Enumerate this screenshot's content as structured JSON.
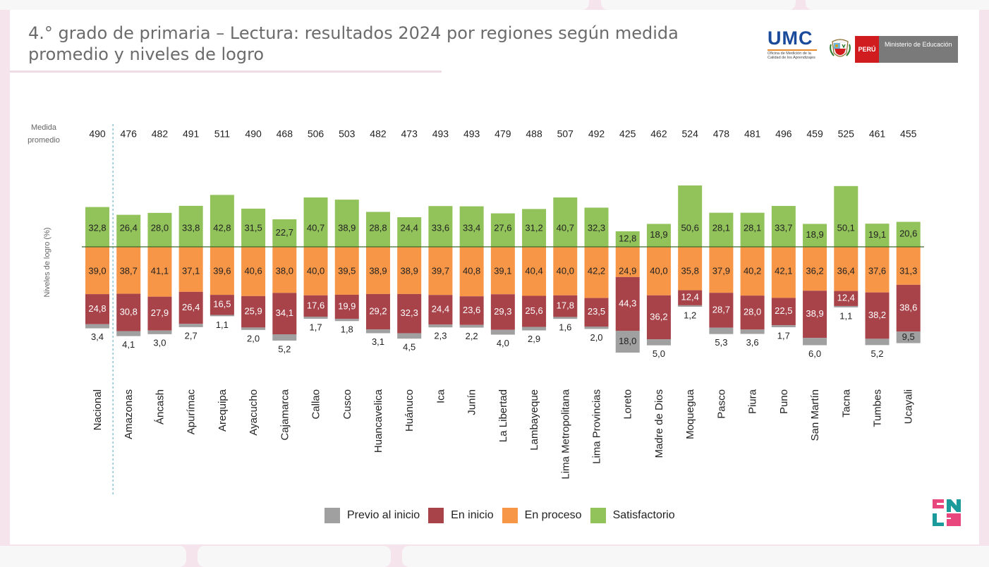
{
  "title": "4.° grado de primaria – Lectura: resultados 2024 por regiones según medida promedio y niveles de logro",
  "logos": {
    "umc_name": "UMC",
    "umc_subtitle": "Oficina de Medición de la Calidad de los Aprendizajes",
    "peru_label": "PERÚ",
    "ministry_label": "Ministerio de Educación",
    "enla_label": "ENLA"
  },
  "colors": {
    "previo": "#a0a0a0",
    "inicio": "#a8434a",
    "proceso": "#f79646",
    "satisfactorio": "#92c25a",
    "baseline": "#3d6b2a",
    "divider": "#4fa7c0"
  },
  "chart_data": {
    "type": "bar",
    "stacking": "diverging",
    "row_label": "Medida\npromedio",
    "ylabel": "Niveles de logro (%)",
    "categories": [
      "Nacional",
      "Amazonas",
      "Áncash",
      "Apurímac",
      "Arequipa",
      "Ayacucho",
      "Cajamarca",
      "Callao",
      "Cusco",
      "Huancavelica",
      "Huánuco",
      "Ica",
      "Junín",
      "La Libertad",
      "Lambayeque",
      "Lima Metropolitana",
      "Lima Provincias",
      "Loreto",
      "Madre de Dios",
      "Moquegua",
      "Pasco",
      "Piura",
      "Puno",
      "San Martín",
      "Tacna",
      "Tumbes",
      "Ucayali"
    ],
    "medida_promedio": [
      490,
      476,
      482,
      491,
      511,
      490,
      468,
      506,
      503,
      482,
      473,
      493,
      493,
      479,
      488,
      507,
      492,
      425,
      462,
      524,
      478,
      481,
      496,
      459,
      525,
      461,
      455
    ],
    "series": [
      {
        "name": "Satisfactorio",
        "key": "satisfactorio",
        "labels": [
          "32,8",
          "26,4",
          "28,0",
          "33,8",
          "42,8",
          "31,5",
          "22,7",
          "40,7",
          "38,9",
          "28,8",
          "24,4",
          "33,6",
          "33,4",
          "27,6",
          "31,2",
          "40,7",
          "32,3",
          "12,8",
          "18,9",
          "50,6",
          "28,1",
          "28,1",
          "33,7",
          "18,9",
          "50,1",
          "19,1",
          "20,6"
        ]
      },
      {
        "name": "En proceso",
        "key": "proceso",
        "labels": [
          "39,0",
          "38,7",
          "41,1",
          "37,1",
          "39,6",
          "40,6",
          "38,0",
          "40,0",
          "39,5",
          "38,9",
          "38,9",
          "39,7",
          "40,8",
          "39,1",
          "40,4",
          "40,0",
          "42,2",
          "24,9",
          "40,0",
          "35,8",
          "37,9",
          "40,2",
          "42,1",
          "36,2",
          "36,4",
          "37,6",
          "31,3"
        ]
      },
      {
        "name": "En inicio",
        "key": "inicio",
        "labels": [
          "24,8",
          "30,8",
          "27,9",
          "26,4",
          "16,5",
          "25,9",
          "34,1",
          "17,6",
          "19,9",
          "29,2",
          "32,3",
          "24,4",
          "23,6",
          "29,3",
          "25,6",
          "17,8",
          "23,5",
          "44,3",
          "36,2",
          "12,4",
          "28,7",
          "28,0",
          "22,5",
          "38,9",
          "12,4",
          "38,2",
          "38,6"
        ]
      },
      {
        "name": "Previo al inicio",
        "key": "previo",
        "labels": [
          "3,4",
          "4,1",
          "3,0",
          "2,7",
          "1,1",
          "2,0",
          "5,2",
          "1,7",
          "1,8",
          "3,1",
          "4,5",
          "2,3",
          "2,2",
          "4,0",
          "2,9",
          "1,6",
          "2,0",
          "18,0",
          "5,0",
          "1,2",
          "5,3",
          "3,6",
          "1,7",
          "6,0",
          "1,1",
          "5,2",
          "9,5"
        ]
      }
    ],
    "legend": [
      "Previo al inicio",
      "En inicio",
      "En proceso",
      "Satisfactorio"
    ],
    "legend_position": "bottom",
    "grid": false
  }
}
